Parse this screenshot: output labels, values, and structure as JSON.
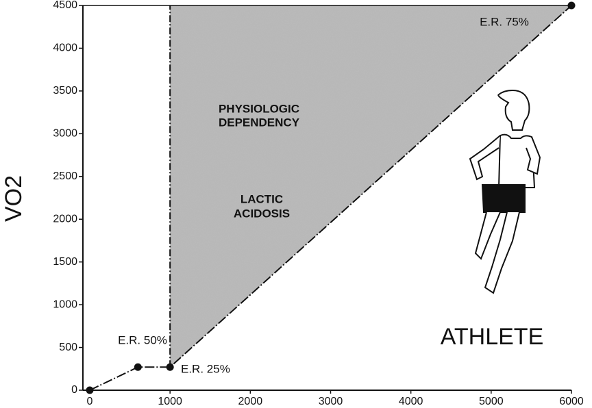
{
  "chart_data": {
    "type": "line",
    "y_label": "VO2",
    "x": [
      0,
      600,
      1000,
      6000
    ],
    "series": [
      {
        "color": "#111111",
        "values": [
          0,
          270,
          270,
          4500
        ]
      }
    ],
    "shade_color": "#b8b8b8",
    "xlim": [
      0,
      6000
    ],
    "ylim": [
      0,
      4500
    ],
    "xticks": [
      0,
      1000,
      2000,
      3000,
      4000,
      5000,
      6000
    ],
    "yticks": [
      0,
      500,
      1000,
      1500,
      2000,
      2500,
      3000,
      3500,
      4000,
      4500
    ],
    "annotations": [
      "E.R. 75%",
      "PHYSIOLOGIC",
      "DEPENDENCY",
      "LACTIC",
      "ACIDOSIS",
      "E.R. 50%",
      "E.R. 25%",
      "ATHLETE"
    ]
  }
}
